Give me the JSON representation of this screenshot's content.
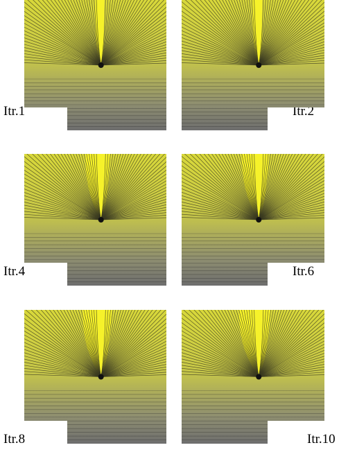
{
  "panels": [
    {
      "label": "Itr.1"
    },
    {
      "label": "Itr.2"
    },
    {
      "label": "Itr.4"
    },
    {
      "label": "Itr.6"
    },
    {
      "label": "Itr.8"
    },
    {
      "label": "Itr.10"
    }
  ]
}
